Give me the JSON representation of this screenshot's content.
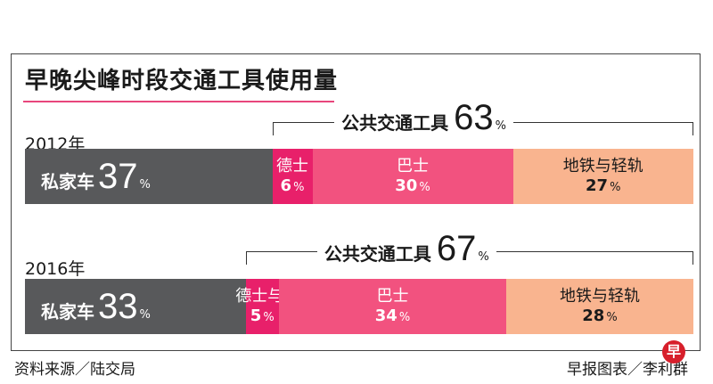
{
  "title": "早晚尖峰时段交通工具使用量",
  "chart_data": {
    "type": "bar",
    "title": "早晚尖峰时段交通工具使用量",
    "orientation": "horizontal-stacked",
    "unit": "%",
    "groups": [
      {
        "year": "2012年",
        "public_transport_label": "公共交通工具",
        "public_transport_total": 63,
        "segments": [
          {
            "name": "私家车",
            "value": 37,
            "color": "#58595b"
          },
          {
            "name": "德士",
            "value": 6,
            "color": "#e8206a"
          },
          {
            "name": "巴士",
            "value": 30,
            "color": "#f2527f"
          },
          {
            "name": "地铁与轻轨",
            "value": 27,
            "color": "#f9b48f"
          }
        ]
      },
      {
        "year": "2016年",
        "public_transport_label": "公共交通工具",
        "public_transport_total": 67,
        "segments": [
          {
            "name": "私家车",
            "value": 33,
            "color": "#58595b"
          },
          {
            "name": "德士与私召车",
            "value": 5,
            "color": "#e8206a"
          },
          {
            "name": "巴士",
            "value": 34,
            "color": "#f2527f"
          },
          {
            "name": "地铁与轻轨",
            "value": 28,
            "color": "#f9b48f"
          }
        ]
      }
    ]
  },
  "footer": {
    "source": "资料来源／陆交局",
    "credit": "早报图表／李利群",
    "logo_char": "早"
  }
}
